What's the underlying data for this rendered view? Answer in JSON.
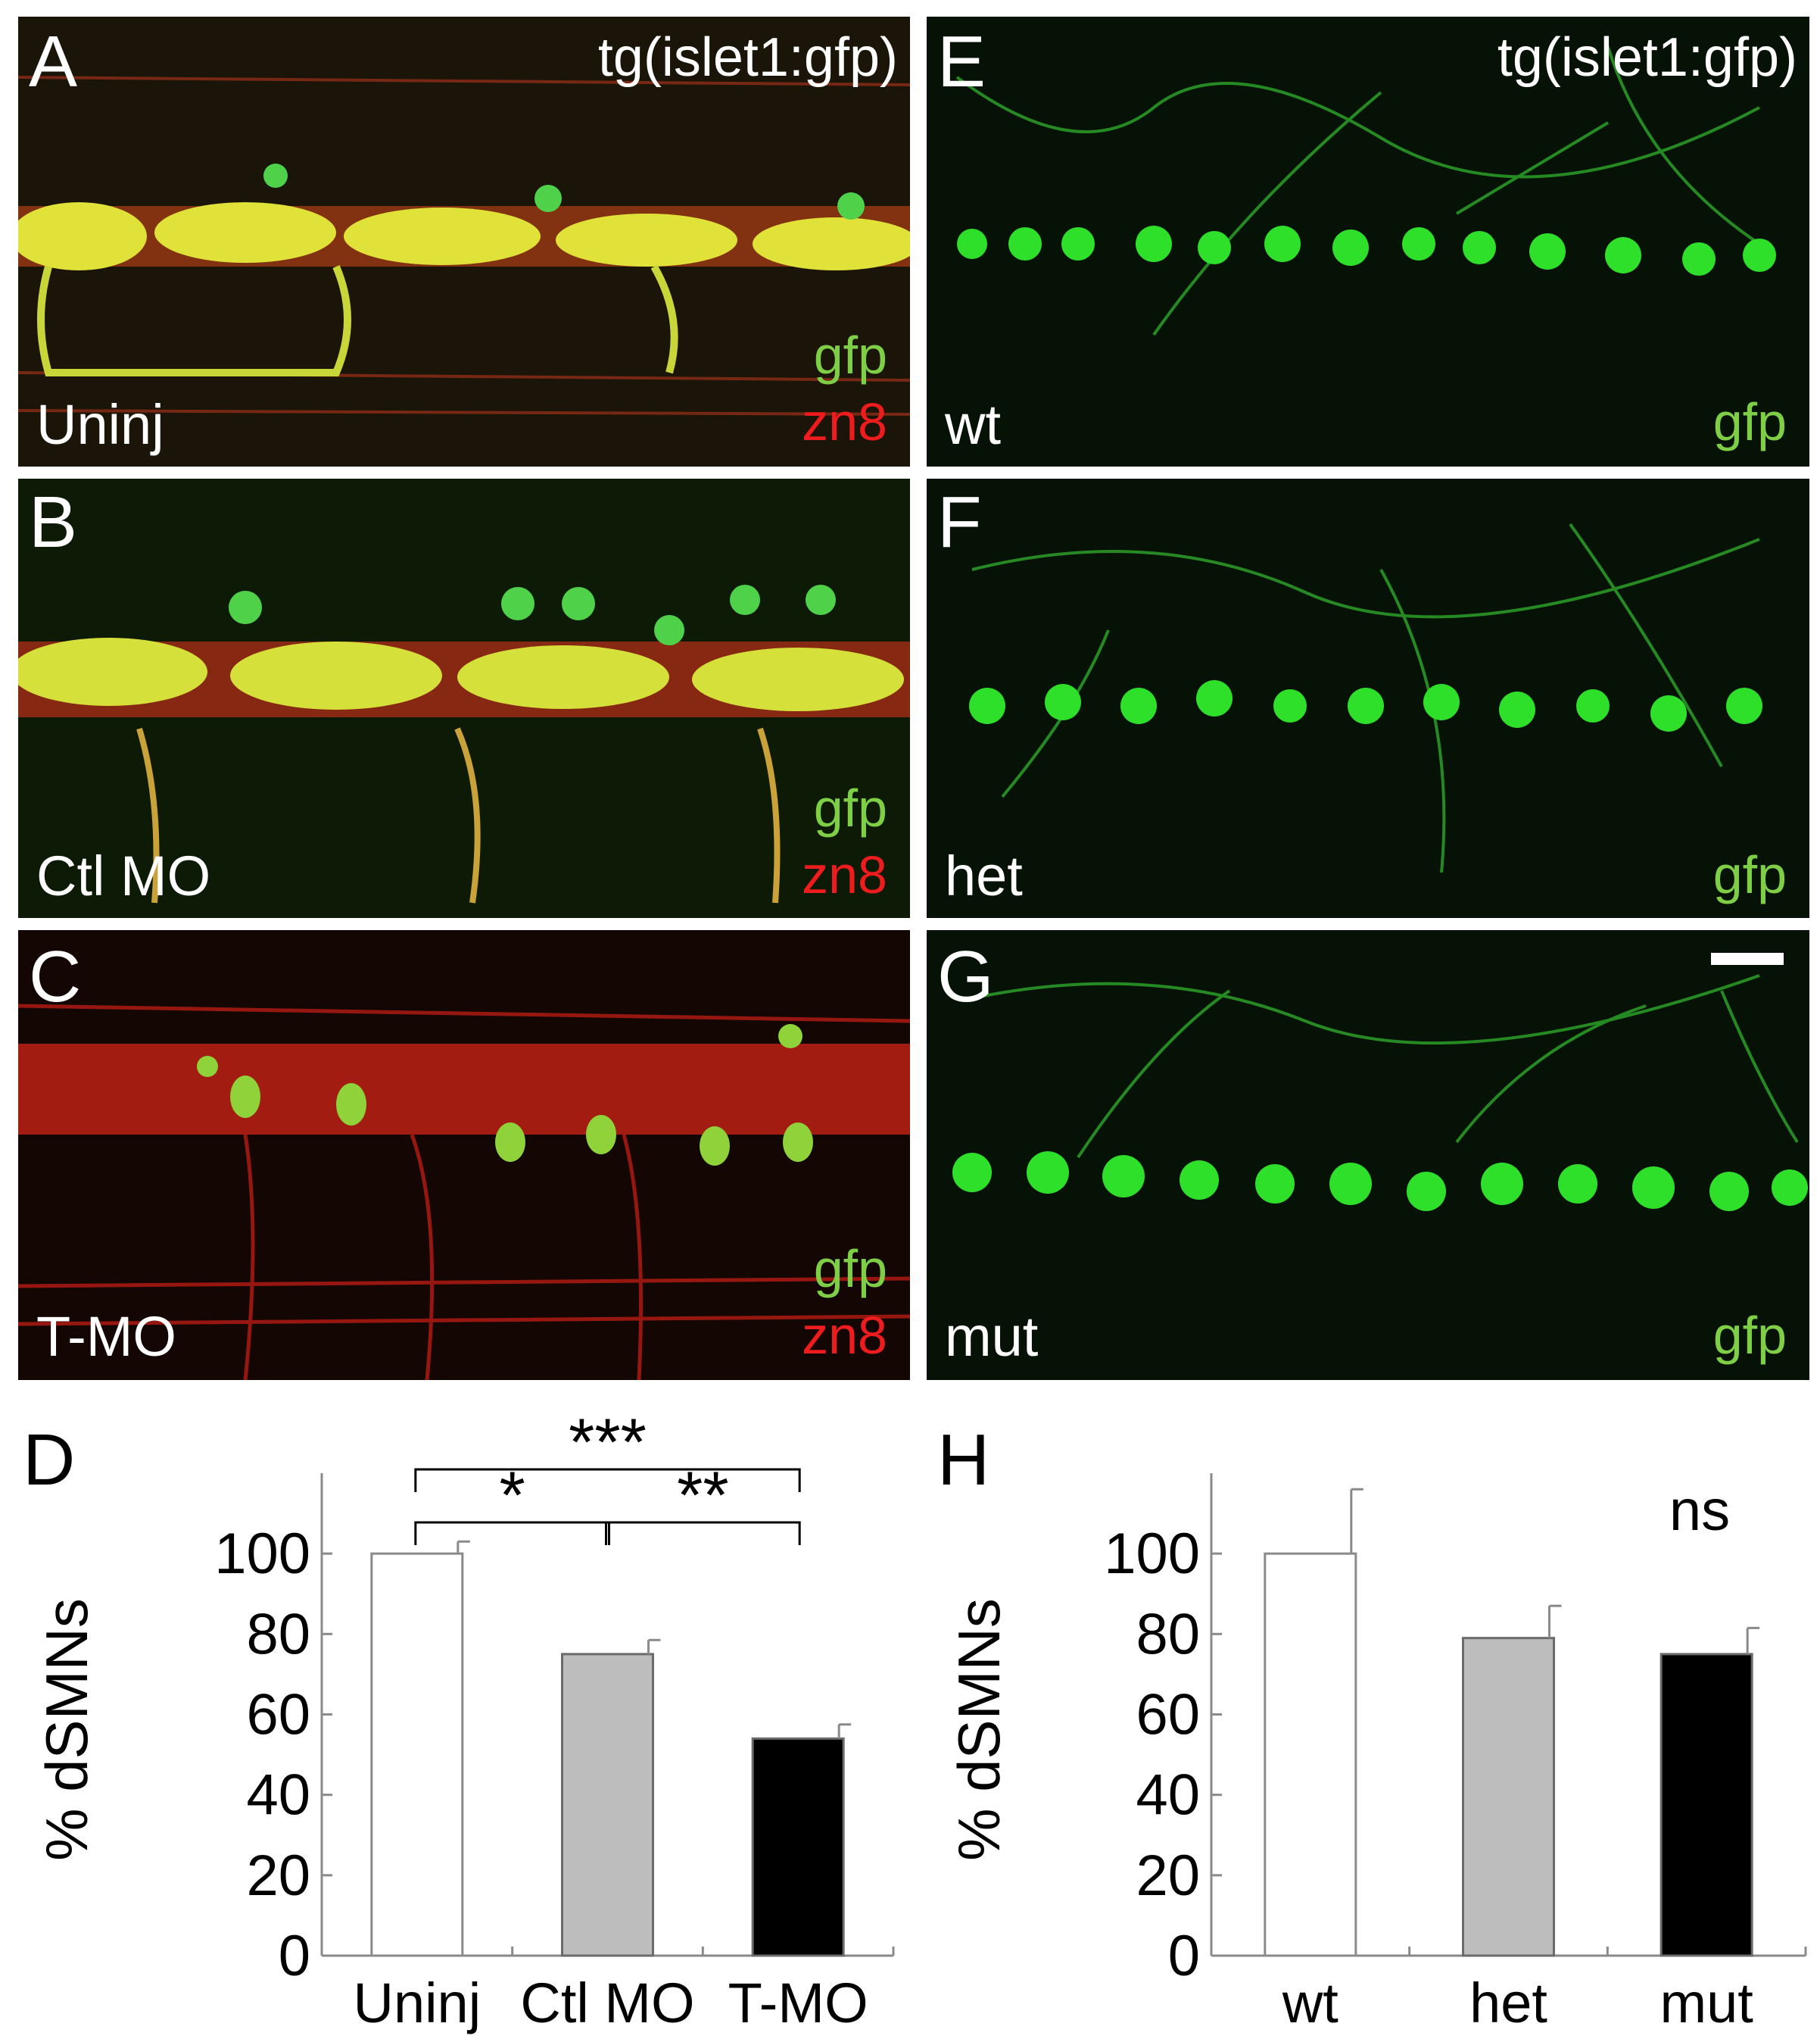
{
  "transgene_label": "tg(islet1:gfp)",
  "stain_gfp": "gfp",
  "stain_zn8": "zn8",
  "colors": {
    "gfp_green": "#7fcf46",
    "zn8_red": "#ee1c1c",
    "panel_background": "#0b1a08",
    "ctl_bar": "#bdbdbd",
    "tmo_bar": "#000000",
    "uninj_bar": "#ffffff"
  },
  "panels": {
    "A": {
      "letter": "A",
      "condition": "Uninj",
      "stains": "gfp + zn8"
    },
    "B": {
      "letter": "B",
      "condition": "Ctl MO",
      "stains": "gfp + zn8"
    },
    "C": {
      "letter": "C",
      "condition": "T-MO",
      "stains": "gfp + zn8"
    },
    "E": {
      "letter": "E",
      "condition": "wt",
      "stains": "gfp"
    },
    "F": {
      "letter": "F",
      "condition": "het",
      "stains": "gfp"
    },
    "G": {
      "letter": "G",
      "condition": "mut",
      "stains": "gfp"
    }
  },
  "chart_data": [
    {
      "panel": "D",
      "type": "bar",
      "categories": [
        "Uninj",
        "Ctl MO",
        "T-MO"
      ],
      "values": [
        100,
        75,
        54
      ],
      "errors": [
        3,
        3.5,
        3.5
      ],
      "bar_colors": [
        "#ffffff",
        "#bdbdbd",
        "#000000"
      ],
      "ylabel": "% dSMNs",
      "ylim": [
        0,
        120
      ],
      "yticks": [
        0,
        20,
        40,
        60,
        80,
        100
      ],
      "significance": [
        {
          "from": 0,
          "to": 2,
          "label": "***"
        },
        {
          "from": 0,
          "to": 1,
          "label": "*"
        },
        {
          "from": 1,
          "to": 2,
          "label": "**"
        }
      ]
    },
    {
      "panel": "H",
      "type": "bar",
      "categories": [
        "wt",
        "het",
        "mut"
      ],
      "values": [
        100,
        79,
        75
      ],
      "errors": [
        16,
        8,
        6.5
      ],
      "bar_colors": [
        "#ffffff",
        "#bdbdbd",
        "#000000"
      ],
      "ylabel": "% dSMNs",
      "ylim": [
        0,
        120
      ],
      "yticks": [
        0,
        20,
        40,
        60,
        80,
        100
      ],
      "annotation": "ns"
    }
  ]
}
